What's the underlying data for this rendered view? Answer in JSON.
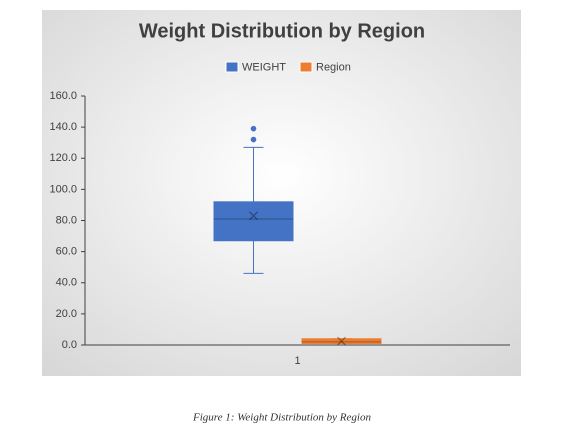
{
  "caption": "Figure 1: Weight Distribution by Region",
  "chart_data": {
    "type": "box",
    "title": "Weight Distribution by Region",
    "categories": [
      "1"
    ],
    "series": [
      {
        "name": "WEIGHT",
        "color": "#4472c4",
        "min": 46,
        "q1": 67,
        "median": 81,
        "q3": 92,
        "max": 127,
        "mean": 83,
        "outliers": [
          132,
          139
        ]
      },
      {
        "name": "Region",
        "color": "#ed7d31",
        "min": 1,
        "q1": 1,
        "median": 2,
        "q3": 4,
        "max": 4,
        "mean": 2.5,
        "outliers": []
      }
    ],
    "ylim": [
      0,
      160
    ],
    "yticks": [
      {
        "value": 0,
        "label": "0.0"
      },
      {
        "value": 20,
        "label": "20.0"
      },
      {
        "value": 40,
        "label": "40.0"
      },
      {
        "value": 60,
        "label": "60.0"
      },
      {
        "value": 80,
        "label": "80.0"
      },
      {
        "value": 100,
        "label": "100.0"
      },
      {
        "value": 120,
        "label": "120.0"
      },
      {
        "value": 140,
        "label": "140.0"
      },
      {
        "value": 160,
        "label": "160.0"
      }
    ],
    "legend": "top",
    "grid": false
  }
}
